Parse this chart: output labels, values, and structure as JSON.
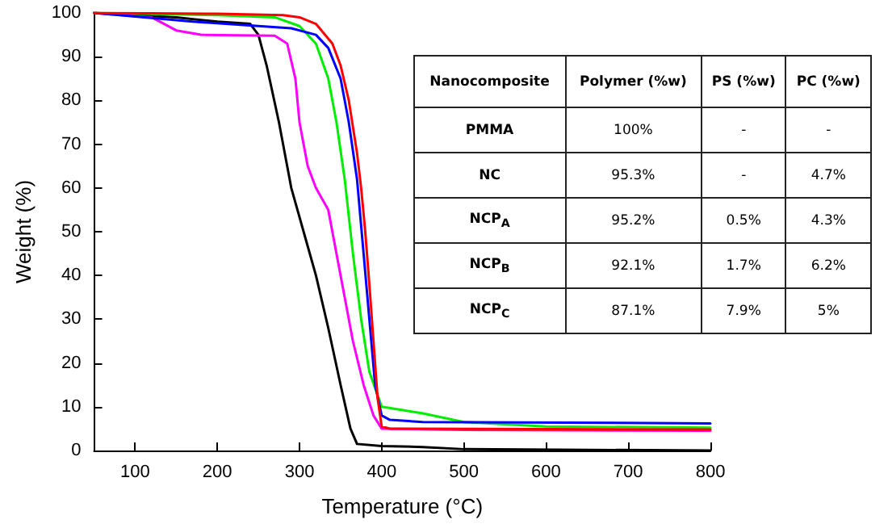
{
  "chart_data": [
    {
      "type": "line",
      "xlabel": "Temperature (°C)",
      "ylabel": "Weight (%)",
      "xlim": [
        50,
        800
      ],
      "xticks": [
        100,
        200,
        300,
        400,
        500,
        600,
        700,
        800
      ],
      "ylim": [
        0,
        100
      ],
      "yticks": [
        0,
        10,
        20,
        30,
        40,
        50,
        60,
        70,
        80,
        90,
        100
      ],
      "grid": false,
      "marker": "none",
      "line_style": "solid",
      "series": [
        {
          "color": "#000000",
          "x": [
            50,
            150,
            200,
            240,
            250,
            260,
            275,
            290,
            305,
            320,
            335,
            350,
            362,
            370,
            400,
            450,
            500,
            800
          ],
          "values": [
            100,
            99,
            98,
            97.5,
            95,
            88,
            75,
            60,
            50,
            40,
            28,
            15,
            5,
            1.5,
            1,
            0.8,
            0.3,
            0
          ]
        },
        {
          "color": "#ff00ff",
          "x": [
            50,
            120,
            150,
            180,
            270,
            285,
            295,
            300,
            310,
            320,
            335,
            345,
            355,
            365,
            378,
            390,
            400,
            500,
            800
          ],
          "values": [
            100,
            99,
            96,
            95,
            94.8,
            93,
            85,
            75,
            65,
            60,
            55,
            45,
            35,
            25,
            15,
            8,
            5,
            4.7,
            4.5
          ]
        },
        {
          "color": "#00ee00",
          "x": [
            50,
            200,
            270,
            300,
            320,
            335,
            345,
            355,
            365,
            375,
            385,
            400,
            450,
            500,
            600,
            800
          ],
          "values": [
            100,
            99.5,
            99,
            97,
            93,
            85,
            75,
            62,
            45,
            30,
            18,
            10,
            8.5,
            6.5,
            5.5,
            5.2
          ]
        },
        {
          "color": "#0000ff",
          "x": [
            50,
            170,
            250,
            290,
            320,
            335,
            350,
            360,
            370,
            378,
            385,
            392,
            400,
            410,
            450,
            800
          ],
          "values": [
            100,
            98,
            97,
            96.5,
            95,
            92,
            85,
            75,
            62,
            45,
            30,
            15,
            8,
            7,
            6.5,
            6.2
          ]
        },
        {
          "color": "#ff0000",
          "x": [
            50,
            200,
            280,
            300,
            320,
            340,
            350,
            360,
            370,
            375,
            380,
            385,
            390,
            395,
            400,
            410,
            800
          ],
          "values": [
            100,
            99.8,
            99.5,
            99,
            97.5,
            93,
            88,
            80,
            68,
            60,
            50,
            38,
            25,
            12,
            5.5,
            5,
            4.8
          ]
        }
      ]
    },
    {
      "type": "other",
      "annotations": [
        "Nanocomposite",
        "Polymer (%w)",
        "PS (%w)",
        "PC (%w)",
        "PMMA",
        "100%",
        "-",
        "-",
        "NC",
        "95.3%",
        "-",
        "4.7%",
        "NCP$_{A}$",
        "95.2%",
        "0.5%",
        "4.3%",
        "NCP$_{B}$",
        "92.1%",
        "1.7%",
        "6.2%",
        "NCP$_{C}$",
        "87.1%",
        "7.9%",
        "5%"
      ]
    }
  ]
}
